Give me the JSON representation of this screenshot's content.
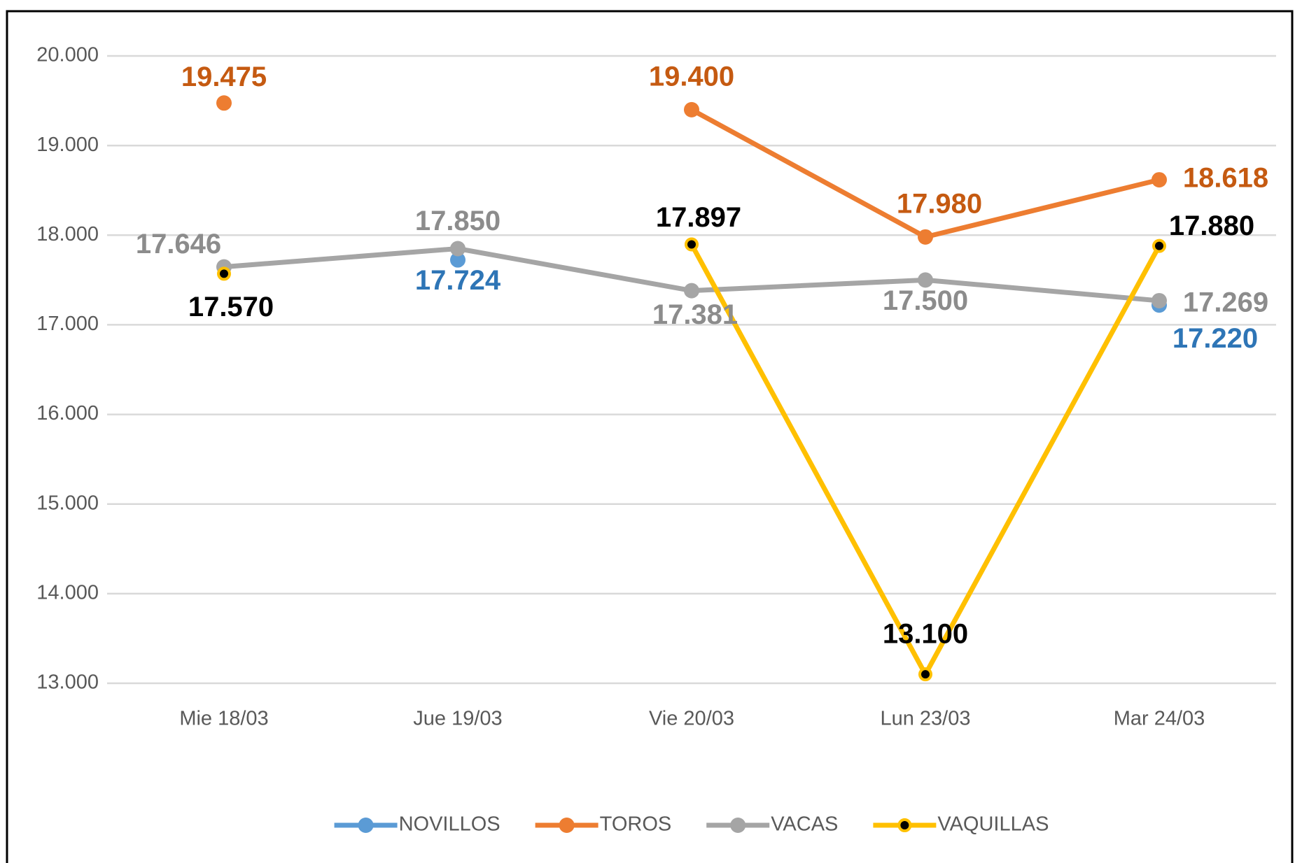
{
  "chart_data": {
    "type": "line",
    "categories": [
      "Mie 18/03",
      "Jue 19/03",
      "Vie 20/03",
      "Lun 23/03",
      "Mar 24/03"
    ],
    "series": [
      {
        "name": "NOVILLOS",
        "color": "#5b9bd5",
        "marker_color": "#5b9bd5",
        "label_color": "#2e75b6",
        "values": [
          null,
          17724,
          null,
          null,
          17220
        ],
        "value_labels": [
          null,
          "17.724",
          null,
          null,
          "17.220"
        ]
      },
      {
        "name": "TOROS",
        "color": "#ed7d31",
        "marker_color": "#ed7d31",
        "label_color": "#c55a11",
        "values": [
          19475,
          null,
          19400,
          17980,
          18618
        ],
        "value_labels": [
          "19.475",
          null,
          "19.400",
          "17.980",
          "18.618"
        ]
      },
      {
        "name": "VACAS",
        "color": "#a5a5a5",
        "marker_color": "#a5a5a5",
        "label_color": "#8c8c8c",
        "values": [
          17646,
          17850,
          17381,
          17500,
          17269
        ],
        "value_labels": [
          "17.646",
          "17.850",
          "17.381",
          "17.500",
          "17.269"
        ]
      },
      {
        "name": "VAQUILLAS",
        "color": "#ffc000",
        "marker_color": "#000000",
        "label_color": "#000000",
        "values": [
          17570,
          null,
          17897,
          13100,
          17880
        ],
        "value_labels": [
          "17.570",
          null,
          "17.897",
          "13.100",
          "17.880"
        ]
      }
    ],
    "ylim": [
      13000,
      20000
    ],
    "yticks": [
      {
        "value": 13000,
        "label": "13.000"
      },
      {
        "value": 14000,
        "label": "14.000"
      },
      {
        "value": 15000,
        "label": "15.000"
      },
      {
        "value": 16000,
        "label": "16.000"
      },
      {
        "value": 17000,
        "label": "17.000"
      },
      {
        "value": 18000,
        "label": "18.000"
      },
      {
        "value": 19000,
        "label": "19.000"
      },
      {
        "value": 20000,
        "label": "20.000"
      }
    ],
    "grid": true,
    "legend": "bottom"
  }
}
